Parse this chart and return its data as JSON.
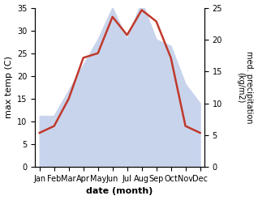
{
  "months": [
    "Jan",
    "Feb",
    "Mar",
    "Apr",
    "May",
    "Jun",
    "Jul",
    "Aug",
    "Sep",
    "Oct",
    "Nov",
    "Dec"
  ],
  "temp": [
    7.5,
    9.0,
    15.0,
    24.0,
    25.0,
    33.0,
    29.0,
    34.5,
    32.0,
    24.0,
    9.0,
    7.5
  ],
  "precip": [
    8.0,
    8.0,
    12.0,
    16.0,
    20.0,
    25.0,
    20.0,
    26.0,
    20.0,
    19.0,
    13.0,
    10.0
  ],
  "temp_color": "#c0392b",
  "precip_fill_color": "#c8d4ec",
  "temp_ylim": [
    0,
    35
  ],
  "precip_ylim": [
    0,
    25
  ],
  "xlabel": "date (month)",
  "ylabel_left": "max temp (C)",
  "ylabel_right": "med. precipitation\n(kg/m2)",
  "temp_yticks": [
    0,
    5,
    10,
    15,
    20,
    25,
    30,
    35
  ],
  "precip_yticks": [
    0,
    5,
    10,
    15,
    20,
    25
  ],
  "bg_color": "#ffffff"
}
